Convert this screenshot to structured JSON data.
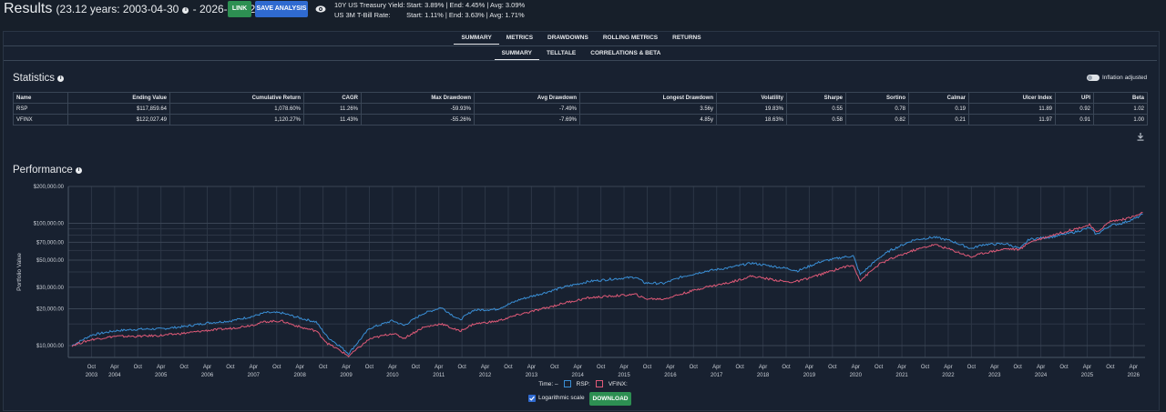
{
  "header": {
    "title": "Results",
    "period": "(23.12 years: 2003-04-30",
    "end_date": "- 2026-06-12)",
    "link_label": "LINK",
    "save_label": "SAVE ANALYSIS",
    "rates": [
      {
        "label": "10Y US Treasury Yield:",
        "value": "Start: 3.89%  |  End: 4.45%  |  Avg: 3.09%"
      },
      {
        "label": "US 3M T-Bill Rate:",
        "value": "Start: 1.11%  |  End: 3.63%  |  Avg: 1.71%"
      }
    ]
  },
  "tabs": {
    "primary": [
      "SUMMARY",
      "METRICS",
      "DRAWDOWNS",
      "ROLLING METRICS",
      "RETURNS"
    ],
    "secondary": [
      "SUMMARY",
      "TELLTALE",
      "CORRELATIONS & BETA"
    ],
    "active_primary": 0,
    "active_secondary": 0
  },
  "statistics": {
    "title": "Statistics",
    "inflation_label": "Inflation adjusted",
    "inflation_adjusted": false,
    "columns": [
      "Name",
      "Ending Value",
      "Cumulative Return",
      "CAGR",
      "Max Drawdown",
      "Avg Drawdown",
      "Longest Drawdown",
      "Volatility",
      "Sharpe",
      "Sortino",
      "Calmar",
      "Ulcer Index",
      "UPI",
      "Beta"
    ],
    "rows": [
      [
        "RSP",
        "$117,859.64",
        "1,078.60%",
        "11.26%",
        "-59.93%",
        "-7.49%",
        "3.56y",
        "19.83%",
        "0.55",
        "0.78",
        "0.19",
        "11.89",
        "0.92",
        "1.02"
      ],
      [
        "VFINX",
        "$122,027.49",
        "1,120.27%",
        "11.43%",
        "-55.26%",
        "-7.69%",
        "4.85y",
        "18.63%",
        "0.58",
        "0.82",
        "0.21",
        "11.97",
        "0.91",
        "1.00"
      ]
    ]
  },
  "performance": {
    "title": "Performance",
    "legend_time": "Time:  –",
    "log_label": "Logarithmic scale",
    "log_checked": true,
    "download_label": "DOWNLOAD"
  },
  "colors": {
    "rsp": "#3a8fd6",
    "vfinx": "#e05a78",
    "accent_green": "#2d8f52",
    "accent_blue": "#2f6ad0"
  },
  "chart_data": {
    "type": "line",
    "ylabel": "Portfolio Value",
    "yscale": "log",
    "ylim": [
      8000,
      200000
    ],
    "yticks": [
      10000,
      20000,
      30000,
      50000,
      70000,
      100000,
      200000
    ],
    "ytick_labels": [
      "$10,000.00",
      "$20,000.00",
      "$30,000.00",
      "$50,000.00",
      "$70,000.00",
      "$100,000.00",
      "$200,000.00"
    ],
    "xlim": [
      2003.25,
      2026.5
    ],
    "xticks": [
      {
        "x": 2003.75,
        "top": "Oct",
        "bottom": "2003"
      },
      {
        "x": 2004.25,
        "top": "Apr",
        "bottom": "2004"
      },
      {
        "x": 2004.75,
        "top": "Oct",
        "bottom": ""
      },
      {
        "x": 2005.25,
        "top": "Apr",
        "bottom": "2005"
      },
      {
        "x": 2005.75,
        "top": "Oct",
        "bottom": ""
      },
      {
        "x": 2006.25,
        "top": "Apr",
        "bottom": "2006"
      },
      {
        "x": 2006.75,
        "top": "Oct",
        "bottom": ""
      },
      {
        "x": 2007.25,
        "top": "Apr",
        "bottom": "2007"
      },
      {
        "x": 2007.75,
        "top": "Oct",
        "bottom": ""
      },
      {
        "x": 2008.25,
        "top": "Apr",
        "bottom": "2008"
      },
      {
        "x": 2008.75,
        "top": "Oct",
        "bottom": ""
      },
      {
        "x": 2009.25,
        "top": "Apr",
        "bottom": "2009"
      },
      {
        "x": 2009.75,
        "top": "Oct",
        "bottom": ""
      },
      {
        "x": 2010.25,
        "top": "Apr",
        "bottom": "2010"
      },
      {
        "x": 2010.75,
        "top": "Oct",
        "bottom": ""
      },
      {
        "x": 2011.25,
        "top": "Apr",
        "bottom": "2011"
      },
      {
        "x": 2011.75,
        "top": "Oct",
        "bottom": ""
      },
      {
        "x": 2012.25,
        "top": "Apr",
        "bottom": "2012"
      },
      {
        "x": 2012.75,
        "top": "Oct",
        "bottom": ""
      },
      {
        "x": 2013.25,
        "top": "Apr",
        "bottom": "2013"
      },
      {
        "x": 2013.75,
        "top": "Oct",
        "bottom": ""
      },
      {
        "x": 2014.25,
        "top": "Apr",
        "bottom": "2014"
      },
      {
        "x": 2014.75,
        "top": "Oct",
        "bottom": ""
      },
      {
        "x": 2015.25,
        "top": "Apr",
        "bottom": "2015"
      },
      {
        "x": 2015.75,
        "top": "Oct",
        "bottom": ""
      },
      {
        "x": 2016.25,
        "top": "Apr",
        "bottom": "2016"
      },
      {
        "x": 2016.75,
        "top": "Oct",
        "bottom": ""
      },
      {
        "x": 2017.25,
        "top": "Apr",
        "bottom": "2017"
      },
      {
        "x": 2017.75,
        "top": "Oct",
        "bottom": ""
      },
      {
        "x": 2018.25,
        "top": "Apr",
        "bottom": "2018"
      },
      {
        "x": 2018.75,
        "top": "Oct",
        "bottom": ""
      },
      {
        "x": 2019.25,
        "top": "Apr",
        "bottom": "2019"
      },
      {
        "x": 2019.75,
        "top": "Oct",
        "bottom": ""
      },
      {
        "x": 2020.25,
        "top": "Apr",
        "bottom": "2020"
      },
      {
        "x": 2020.75,
        "top": "Oct",
        "bottom": ""
      },
      {
        "x": 2021.25,
        "top": "Apr",
        "bottom": "2021"
      },
      {
        "x": 2021.75,
        "top": "Oct",
        "bottom": ""
      },
      {
        "x": 2022.25,
        "top": "Apr",
        "bottom": "2022"
      },
      {
        "x": 2022.75,
        "top": "Oct",
        "bottom": ""
      },
      {
        "x": 2023.25,
        "top": "Apr",
        "bottom": "2023"
      },
      {
        "x": 2023.75,
        "top": "Oct",
        "bottom": ""
      },
      {
        "x": 2024.25,
        "top": "Apr",
        "bottom": "2024"
      },
      {
        "x": 2024.75,
        "top": "Oct",
        "bottom": ""
      },
      {
        "x": 2025.25,
        "top": "Apr",
        "bottom": "2025"
      },
      {
        "x": 2025.75,
        "top": "Oct",
        "bottom": ""
      },
      {
        "x": 2026.25,
        "top": "Apr",
        "bottom": "2026"
      }
    ],
    "grid": true,
    "series": [
      {
        "name": "RSP:",
        "color": "#3a8fd6",
        "x": [
          2003.33,
          2003.75,
          2004.25,
          2004.75,
          2005.25,
          2005.75,
          2006.25,
          2006.75,
          2007.25,
          2007.5,
          2007.85,
          2008.3,
          2008.6,
          2008.85,
          2009.1,
          2009.3,
          2009.75,
          2010.25,
          2010.5,
          2010.9,
          2011.3,
          2011.7,
          2012.0,
          2012.5,
          2013.0,
          2013.5,
          2014.0,
          2014.5,
          2015.0,
          2015.5,
          2015.7,
          2016.1,
          2016.5,
          2017.0,
          2017.5,
          2018.0,
          2018.8,
          2019.0,
          2019.5,
          2020.0,
          2020.2,
          2020.35,
          2020.75,
          2021.0,
          2021.5,
          2021.95,
          2022.3,
          2022.75,
          2023.0,
          2023.5,
          2023.8,
          2024.0,
          2024.5,
          2025.0,
          2025.3,
          2025.45,
          2025.75,
          2026.0,
          2026.3,
          2026.45
        ],
        "y": [
          10000,
          12200,
          13200,
          13600,
          13700,
          14300,
          15300,
          15900,
          17400,
          18600,
          18500,
          16600,
          15600,
          11700,
          10000,
          8600,
          13800,
          16000,
          14600,
          18200,
          20500,
          16200,
          19500,
          19800,
          23800,
          26800,
          30400,
          33500,
          35000,
          36300,
          32500,
          32200,
          36500,
          40500,
          43200,
          47300,
          42500,
          40800,
          48600,
          53000,
          54000,
          38000,
          52000,
          60000,
          73000,
          77000,
          72000,
          62000,
          67000,
          68000,
          62000,
          74000,
          77500,
          85000,
          92000,
          81000,
          96000,
          100000,
          110000,
          118000
        ]
      },
      {
        "name": "VFINX:",
        "color": "#e05a78",
        "x": [
          2003.33,
          2003.75,
          2004.25,
          2004.75,
          2005.25,
          2005.75,
          2006.25,
          2006.75,
          2007.25,
          2007.5,
          2007.85,
          2008.3,
          2008.6,
          2008.85,
          2009.1,
          2009.3,
          2009.75,
          2010.25,
          2010.5,
          2010.9,
          2011.3,
          2011.7,
          2012.0,
          2012.5,
          2013.0,
          2013.5,
          2014.0,
          2014.5,
          2015.0,
          2015.5,
          2015.7,
          2016.1,
          2016.5,
          2017.0,
          2017.5,
          2018.0,
          2018.8,
          2019.0,
          2019.5,
          2020.0,
          2020.2,
          2020.35,
          2020.75,
          2021.0,
          2021.5,
          2021.95,
          2022.3,
          2022.75,
          2023.0,
          2023.5,
          2023.8,
          2024.0,
          2024.5,
          2025.0,
          2025.3,
          2025.45,
          2025.75,
          2026.0,
          2026.3,
          2026.45
        ],
        "y": [
          10000,
          11200,
          11900,
          11900,
          12100,
          12600,
          13300,
          13800,
          14800,
          15700,
          15900,
          14000,
          13200,
          10400,
          9200,
          8200,
          11300,
          12600,
          11500,
          14000,
          15100,
          13100,
          15000,
          15800,
          18000,
          20000,
          22500,
          24600,
          25400,
          26200,
          24200,
          24000,
          26500,
          30000,
          32500,
          37000,
          33000,
          33500,
          38200,
          44000,
          45000,
          34000,
          46000,
          51000,
          60000,
          67000,
          61000,
          53000,
          57000,
          62000,
          61000,
          70000,
          80000,
          90000,
          97000,
          84000,
          104000,
          107000,
          115000,
          122000
        ]
      }
    ]
  }
}
